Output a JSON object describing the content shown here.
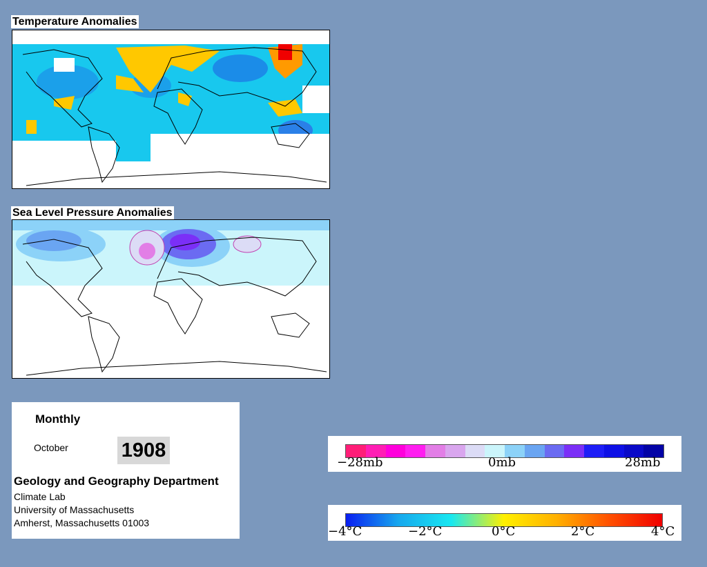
{
  "temperature_panel": {
    "title": "Temperature Anomalies"
  },
  "pressure_panel": {
    "title": "Sea Level Pressure Anomalies"
  },
  "info": {
    "frequency": "Monthly",
    "month": "October",
    "year": "1908",
    "department": "Geology and Geography Department",
    "lab": "Climate Lab",
    "university": "University of Massachusetts",
    "address": "Amherst, Massachusetts 01003"
  },
  "pressure_legend": {
    "labels": [
      "−28mb",
      "0mb",
      "28mb"
    ],
    "colors": [
      "#ff1e78",
      "#ff1eb4",
      "#ff00dc",
      "#ff1ef0",
      "#e27ee6",
      "#d9a6ee",
      "#dcdcf6",
      "#cbf5fb",
      "#8cd2f8",
      "#6aa5f2",
      "#6b6bf2",
      "#7b2ff7",
      "#1e1ef7",
      "#0e10e6",
      "#0a0ac8",
      "#0303a6"
    ]
  },
  "temperature_legend": {
    "labels": [
      "−4°C",
      "−2°C",
      "0°C",
      "2°C",
      "4°C"
    ],
    "gradient": [
      "#0a1ef0",
      "#17a8ee",
      "#18e8f0",
      "#fff000",
      "#ffb000",
      "#ff5000",
      "#f00000"
    ]
  }
}
